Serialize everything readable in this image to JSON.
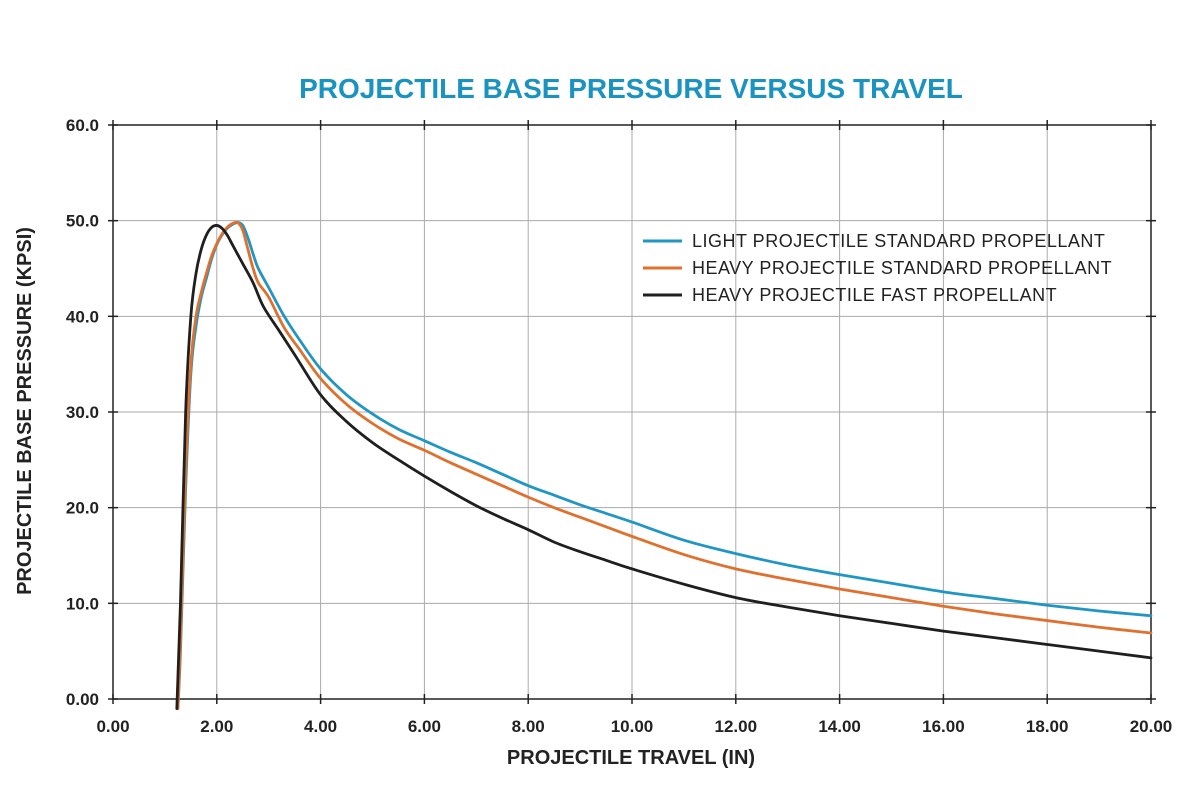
{
  "chart_data": {
    "type": "line",
    "title": "PROJECTILE BASE PRESSURE VERSUS TRAVEL",
    "xlabel": "PROJECTILE TRAVEL (IN)",
    "ylabel": "PROJECTILE BASE PRESSURE (KPSI)",
    "xlim": [
      0,
      20
    ],
    "ylim": [
      0,
      60
    ],
    "x_ticks": [
      0,
      2,
      4,
      6,
      8,
      10,
      12,
      14,
      16,
      18,
      20
    ],
    "x_tick_labels": [
      "0.00",
      "2.00",
      "4.00",
      "6.00",
      "8.00",
      "10.00",
      "12.00",
      "14.00",
      "16.00",
      "18.00",
      "20.00"
    ],
    "y_ticks": [
      0,
      10,
      20,
      30,
      40,
      50,
      60
    ],
    "y_tick_labels": [
      "0.00",
      "10.0",
      "20.0",
      "30.0",
      "40.0",
      "50.0",
      "60.0"
    ],
    "grid": true,
    "legend_position": "top-right",
    "colors": {
      "title": "#1a93c0",
      "grid": "#aaaaaa",
      "axis": "#222222"
    },
    "series": [
      {
        "name": "LIGHT PROJECTILE STANDARD PROPELLANT",
        "color": "#1f96c4",
        "x": [
          1.25,
          1.3,
          1.4,
          1.5,
          1.6,
          1.7,
          1.8,
          1.9,
          2.0,
          2.1,
          2.2,
          2.3,
          2.4,
          2.5,
          2.6,
          2.7,
          2.8,
          3.0,
          3.3,
          3.6,
          4.0,
          4.5,
          5.0,
          5.5,
          6.0,
          6.5,
          7.0,
          7.5,
          8.0,
          8.5,
          9.0,
          9.5,
          10.0,
          11.0,
          12.0,
          13.0,
          14.0,
          15.0,
          16.0,
          17.0,
          18.0,
          19.0,
          20.0
        ],
        "y": [
          -1.0,
          5.0,
          22.0,
          34.0,
          39.0,
          42.0,
          44.0,
          46.0,
          47.5,
          48.5,
          49.2,
          49.6,
          49.8,
          49.5,
          48.2,
          46.5,
          45.0,
          43.0,
          40.0,
          37.5,
          34.5,
          31.8,
          29.8,
          28.2,
          27.0,
          25.8,
          24.7,
          23.5,
          22.3,
          21.3,
          20.3,
          19.4,
          18.5,
          16.6,
          15.2,
          14.0,
          13.0,
          12.1,
          11.2,
          10.5,
          9.8,
          9.2,
          8.7
        ]
      },
      {
        "name": "HEAVY PROJECTILE STANDARD PROPELLANT",
        "color": "#e0702d",
        "x": [
          1.25,
          1.3,
          1.4,
          1.5,
          1.6,
          1.7,
          1.8,
          1.9,
          2.0,
          2.1,
          2.2,
          2.3,
          2.4,
          2.5,
          2.6,
          2.7,
          2.8,
          3.0,
          3.3,
          3.6,
          4.0,
          4.5,
          5.0,
          5.5,
          6.0,
          6.5,
          7.0,
          7.5,
          8.0,
          8.5,
          9.0,
          9.5,
          10.0,
          11.0,
          12.0,
          13.0,
          14.0,
          15.0,
          16.0,
          17.0,
          18.0,
          19.0,
          20.0
        ],
        "y": [
          -1.0,
          6.0,
          24.0,
          35.0,
          40.0,
          42.5,
          44.5,
          46.3,
          47.6,
          48.6,
          49.3,
          49.7,
          49.8,
          49.0,
          47.0,
          45.0,
          43.5,
          42.0,
          38.8,
          36.5,
          33.5,
          30.8,
          28.8,
          27.2,
          26.0,
          24.7,
          23.5,
          22.3,
          21.1,
          20.0,
          19.0,
          18.0,
          17.0,
          15.1,
          13.6,
          12.5,
          11.5,
          10.6,
          9.7,
          8.9,
          8.2,
          7.5,
          6.9
        ]
      },
      {
        "name": "HEAVY PROJECTILE FAST PROPELLANT",
        "color": "#1f1f1f",
        "x": [
          1.23,
          1.3,
          1.4,
          1.5,
          1.6,
          1.7,
          1.8,
          1.9,
          2.0,
          2.1,
          2.2,
          2.3,
          2.4,
          2.5,
          2.7,
          2.9,
          3.2,
          3.5,
          4.0,
          4.5,
          5.0,
          5.5,
          6.0,
          6.5,
          7.0,
          7.5,
          8.0,
          8.5,
          9.0,
          9.5,
          10.0,
          11.0,
          12.0,
          13.0,
          14.0,
          15.0,
          16.0,
          17.0,
          18.0,
          19.0,
          20.0
        ],
        "y": [
          -1.0,
          10.0,
          30.0,
          40.0,
          44.5,
          47.0,
          48.5,
          49.3,
          49.5,
          49.2,
          48.5,
          47.5,
          46.5,
          45.5,
          43.5,
          41.0,
          38.5,
          36.0,
          31.8,
          29.0,
          26.8,
          25.0,
          23.3,
          21.7,
          20.2,
          18.9,
          17.7,
          16.4,
          15.4,
          14.5,
          13.6,
          12.0,
          10.6,
          9.6,
          8.7,
          7.9,
          7.1,
          6.4,
          5.7,
          5.0,
          4.3
        ]
      }
    ]
  }
}
